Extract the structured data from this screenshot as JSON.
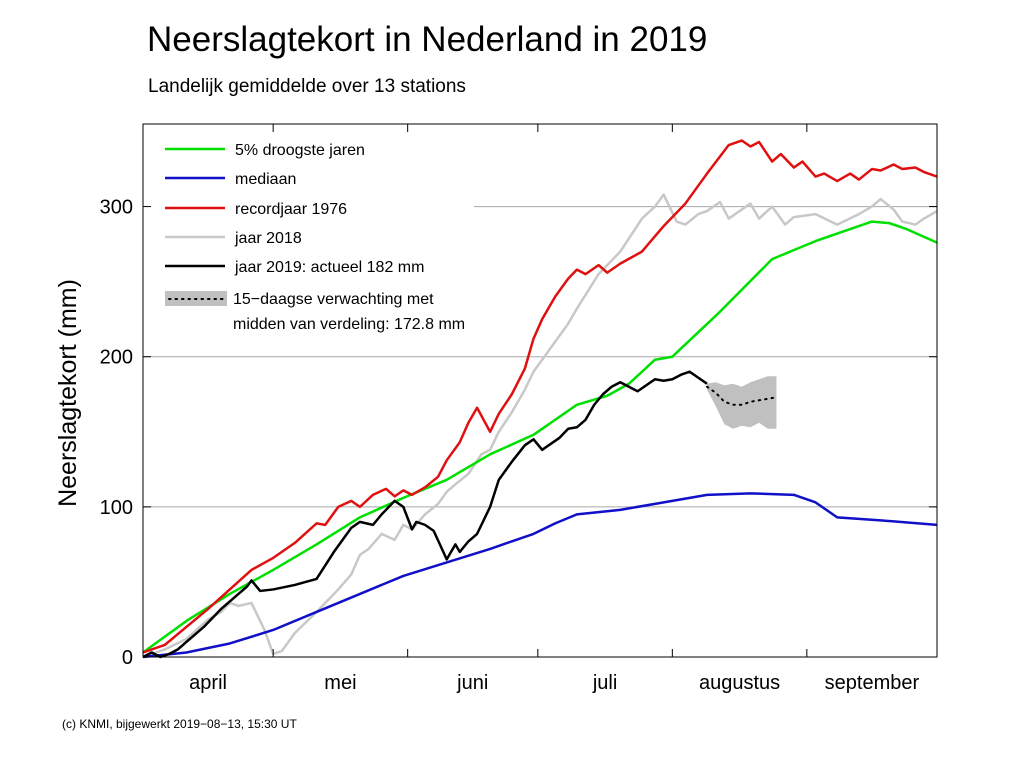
{
  "title": "Neerslagtekort in Nederland in 2019",
  "subtitle": "Landelijk gemiddelde over 13 stations",
  "footer": "(c) KNMI, bijgewerkt 2019−08−13, 15:30 UT",
  "chart_data": {
    "type": "line",
    "title": "Neerslagtekort in Nederland in 2019",
    "subtitle": "Landelijk gemiddelde over 13 stations",
    "xlabel": "",
    "ylabel": "Neerslagtekort (mm)",
    "x_unit": "dagen vanaf 1 april",
    "xlim": [
      0,
      183
    ],
    "ylim": [
      0,
      355
    ],
    "yticks": [
      0,
      100,
      200,
      300
    ],
    "month_boundaries": [
      0,
      30,
      61,
      91,
      122,
      153,
      183
    ],
    "month_labels": [
      "april",
      "mei",
      "juni",
      "juli",
      "augustus",
      "september"
    ],
    "grid": "horizontal",
    "legend_position": "top-left",
    "series": [
      {
        "name": "5% droogste jaren",
        "color": "#00e000",
        "x": [
          0,
          10,
          20,
          30,
          40,
          50,
          60,
          70,
          80,
          90,
          100,
          107,
          112,
          118,
          122,
          133,
          145,
          155,
          168,
          172,
          176,
          183
        ],
        "y": [
          3,
          24,
          42,
          58,
          75,
          93,
          106,
          118,
          135,
          148,
          168,
          174,
          182,
          198,
          200,
          230,
          265,
          277,
          290,
          289,
          285,
          276
        ]
      },
      {
        "name": "mediaan",
        "color": "#1010c8",
        "x": [
          0,
          10,
          20,
          30,
          40,
          50,
          60,
          70,
          80,
          90,
          95,
          100,
          110,
          120,
          130,
          140,
          150,
          155,
          160,
          170,
          183
        ],
        "y": [
          0,
          3,
          9,
          18,
          30,
          42,
          54,
          63,
          72,
          82,
          89,
          95,
          98,
          103,
          108,
          109,
          108,
          103,
          93,
          91,
          88
        ]
      },
      {
        "name": "recordjaar 1976",
        "color": "#e01010",
        "x": [
          0,
          5,
          10,
          15,
          20,
          25,
          30,
          35,
          40,
          42,
          45,
          48,
          50,
          53,
          56,
          58,
          60,
          62,
          65,
          68,
          70,
          73,
          75,
          77,
          80,
          82,
          85,
          88,
          90,
          92,
          95,
          98,
          100,
          102,
          105,
          107,
          110,
          115,
          120,
          125,
          130,
          135,
          138,
          140,
          142,
          145,
          147,
          150,
          152,
          155,
          157,
          160,
          163,
          165,
          168,
          170,
          173,
          175,
          178,
          180,
          183
        ],
        "y": [
          3,
          8,
          20,
          32,
          45,
          58,
          66,
          76,
          89,
          88,
          100,
          104,
          100,
          108,
          112,
          107,
          111,
          108,
          113,
          120,
          131,
          143,
          156,
          166,
          150,
          162,
          175,
          192,
          212,
          225,
          240,
          252,
          258,
          255,
          261,
          256,
          262,
          270,
          287,
          302,
          322,
          341,
          344,
          340,
          343,
          330,
          335,
          326,
          330,
          320,
          322,
          317,
          322,
          318,
          325,
          324,
          328,
          325,
          326,
          323,
          320
        ]
      },
      {
        "name": "jaar 2018",
        "color": "#c8c8c8",
        "x": [
          0,
          5,
          10,
          15,
          18,
          20,
          22,
          25,
          28,
          30,
          32,
          35,
          40,
          45,
          48,
          50,
          52,
          55,
          58,
          60,
          62,
          65,
          68,
          70,
          72,
          75,
          78,
          80,
          82,
          85,
          88,
          90,
          92,
          95,
          98,
          100,
          105,
          110,
          115,
          118,
          120,
          123,
          125,
          128,
          130,
          133,
          135,
          138,
          140,
          142,
          145,
          148,
          150,
          155,
          160,
          165,
          168,
          170,
          173,
          175,
          178,
          180,
          183
        ],
        "y": [
          0,
          5,
          12,
          25,
          30,
          36,
          34,
          36,
          18,
          2,
          4,
          16,
          30,
          45,
          55,
          68,
          72,
          82,
          78,
          88,
          85,
          95,
          102,
          110,
          115,
          122,
          135,
          138,
          150,
          163,
          178,
          190,
          198,
          210,
          222,
          232,
          255,
          270,
          292,
          300,
          308,
          290,
          288,
          295,
          297,
          303,
          292,
          298,
          302,
          292,
          300,
          288,
          293,
          295,
          288,
          295,
          300,
          305,
          298,
          290,
          288,
          292,
          297
        ]
      },
      {
        "name": "jaar 2019: actueel 182 mm",
        "color": "#000000",
        "x": [
          0,
          2,
          4,
          6,
          8,
          10,
          14,
          18,
          22,
          24,
          25,
          27,
          30,
          35,
          40,
          44,
          46,
          48,
          50,
          53,
          55,
          58,
          60,
          62,
          63,
          65,
          67,
          70,
          72,
          73,
          75,
          77,
          80,
          82,
          85,
          88,
          90,
          92,
          94,
          96,
          98,
          100,
          102,
          104,
          106,
          108,
          110,
          112,
          114,
          116,
          118,
          120,
          122,
          124,
          126,
          128,
          130
        ],
        "y": [
          0,
          3,
          0,
          2,
          5,
          10,
          20,
          32,
          42,
          47,
          51,
          44,
          45,
          48,
          52,
          70,
          78,
          86,
          90,
          88,
          95,
          104,
          100,
          85,
          90,
          88,
          84,
          65,
          75,
          70,
          77,
          82,
          100,
          118,
          130,
          141,
          145,
          138,
          142,
          146,
          152,
          153,
          158,
          168,
          175,
          180,
          183,
          180,
          177,
          181,
          185,
          184,
          185,
          188,
          190,
          186,
          182
        ]
      }
    ],
    "forecast": {
      "name": "15−daagse verwachting met midden van verdeling: 172.8 mm",
      "label_line1": "15−daagse verwachting met",
      "label_line2": "midden van verdeling: 172.8 mm",
      "median_value": 172.8,
      "band_color": "#c0c0c0",
      "x": [
        130,
        132,
        134,
        136,
        138,
        140,
        142,
        144,
        146
      ],
      "lower": [
        178,
        167,
        155,
        152,
        154,
        153,
        156,
        152,
        152
      ],
      "upper": [
        182,
        183,
        181,
        182,
        180,
        183,
        185,
        187,
        187
      ],
      "median": [
        180,
        176,
        170,
        168,
        168,
        170,
        171,
        172,
        173
      ]
    }
  }
}
